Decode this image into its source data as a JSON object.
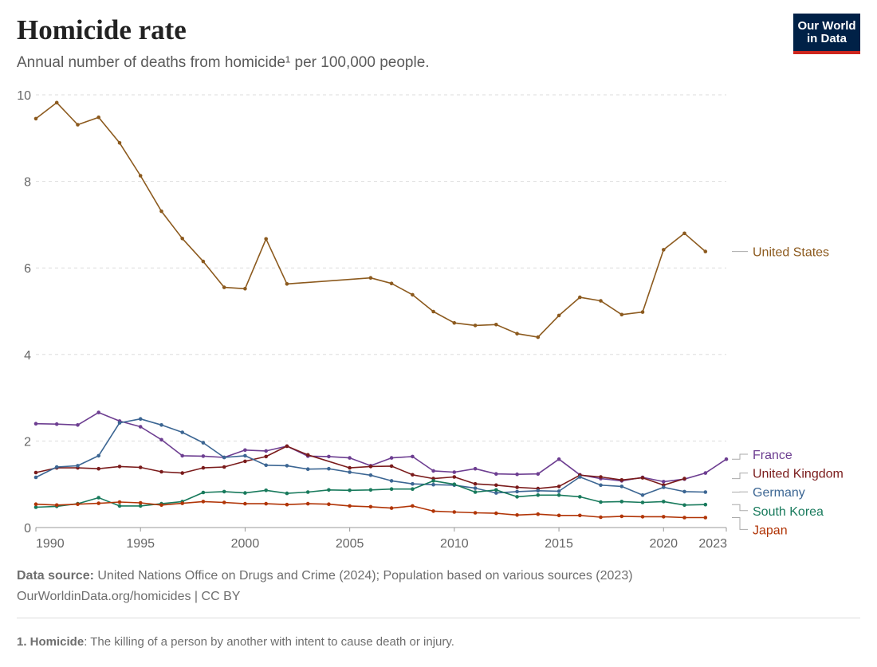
{
  "header": {
    "title": "Homicide rate",
    "subtitle": "Annual number of deaths from homicide¹ per 100,000 people.",
    "logo_line1": "Our World",
    "logo_line2": "in Data"
  },
  "footer": {
    "source_label": "Data source:",
    "source_text": " United Nations Office on Drugs and Crime (2024); Population based on various sources (2023)",
    "url_text": "OurWorldinData.org/homicides | CC BY",
    "note_label": "1. Homicide",
    "note_text": ": The killing of a person by another with intent to cause death or injury."
  },
  "chart_data": {
    "type": "line",
    "title": "Homicide rate",
    "subtitle": "Annual number of deaths from homicide¹ per 100,000 people.",
    "xlabel": "",
    "ylabel": "",
    "xlim": [
      1990,
      2023
    ],
    "ylim": [
      0,
      10
    ],
    "x_ticks": [
      1990,
      1995,
      2000,
      2005,
      2010,
      2015,
      2020,
      2023
    ],
    "y_ticks": [
      0,
      2,
      4,
      6,
      8,
      10
    ],
    "grid": "horizontal dashed",
    "legend": "right, labels at line ends",
    "series": [
      {
        "name": "United States",
        "color": "#8c5a1e",
        "points": [
          [
            1990,
            9.45
          ],
          [
            1991,
            9.82
          ],
          [
            1992,
            9.31
          ],
          [
            1993,
            9.48
          ],
          [
            1994,
            8.89
          ],
          [
            1995,
            8.13
          ],
          [
            1996,
            7.31
          ],
          [
            1997,
            6.68
          ],
          [
            1998,
            6.15
          ],
          [
            1999,
            5.55
          ],
          [
            2000,
            5.52
          ],
          [
            2001,
            6.67
          ],
          [
            2002,
            5.63
          ],
          [
            2006,
            5.77
          ],
          [
            2007,
            5.64
          ],
          [
            2008,
            5.38
          ],
          [
            2009,
            4.99
          ],
          [
            2010,
            4.73
          ],
          [
            2011,
            4.67
          ],
          [
            2012,
            4.69
          ],
          [
            2013,
            4.48
          ],
          [
            2014,
            4.4
          ],
          [
            2015,
            4.9
          ],
          [
            2016,
            5.32
          ],
          [
            2017,
            5.24
          ],
          [
            2018,
            4.92
          ],
          [
            2019,
            4.98
          ],
          [
            2020,
            6.42
          ],
          [
            2021,
            6.8
          ],
          [
            2022,
            6.38
          ]
        ]
      },
      {
        "name": "France",
        "color": "#6d3e91",
        "points": [
          [
            1990,
            2.4
          ],
          [
            1991,
            2.39
          ],
          [
            1992,
            2.37
          ],
          [
            1993,
            2.66
          ],
          [
            1994,
            2.46
          ],
          [
            1995,
            2.33
          ],
          [
            1996,
            2.03
          ],
          [
            1997,
            1.66
          ],
          [
            1998,
            1.65
          ],
          [
            1999,
            1.62
          ],
          [
            2000,
            1.79
          ],
          [
            2001,
            1.77
          ],
          [
            2002,
            1.88
          ],
          [
            2003,
            1.65
          ],
          [
            2004,
            1.64
          ],
          [
            2005,
            1.61
          ],
          [
            2006,
            1.43
          ],
          [
            2007,
            1.61
          ],
          [
            2008,
            1.64
          ],
          [
            2009,
            1.31
          ],
          [
            2010,
            1.28
          ],
          [
            2011,
            1.36
          ],
          [
            2012,
            1.24
          ],
          [
            2013,
            1.23
          ],
          [
            2014,
            1.24
          ],
          [
            2015,
            1.58
          ],
          [
            2016,
            1.22
          ],
          [
            2017,
            1.13
          ],
          [
            2018,
            1.08
          ],
          [
            2019,
            1.16
          ],
          [
            2020,
            1.06
          ],
          [
            2021,
            1.12
          ],
          [
            2022,
            1.26
          ],
          [
            2023,
            1.58
          ]
        ]
      },
      {
        "name": "United Kingdom",
        "color": "#7a1b1b",
        "points": [
          [
            1990,
            1.27
          ],
          [
            1991,
            1.38
          ],
          [
            1992,
            1.38
          ],
          [
            1993,
            1.36
          ],
          [
            1994,
            1.41
          ],
          [
            1995,
            1.39
          ],
          [
            1996,
            1.29
          ],
          [
            1997,
            1.26
          ],
          [
            1998,
            1.38
          ],
          [
            1999,
            1.4
          ],
          [
            2000,
            1.53
          ],
          [
            2001,
            1.64
          ],
          [
            2002,
            1.88
          ],
          [
            2003,
            1.68
          ],
          [
            2005,
            1.38
          ],
          [
            2006,
            1.41
          ],
          [
            2007,
            1.42
          ],
          [
            2008,
            1.22
          ],
          [
            2009,
            1.13
          ],
          [
            2010,
            1.17
          ],
          [
            2011,
            1.01
          ],
          [
            2012,
            0.98
          ],
          [
            2013,
            0.93
          ],
          [
            2014,
            0.9
          ],
          [
            2015,
            0.95
          ],
          [
            2016,
            1.21
          ],
          [
            2017,
            1.17
          ],
          [
            2018,
            1.1
          ],
          [
            2019,
            1.15
          ],
          [
            2020,
            0.98
          ],
          [
            2021,
            1.13
          ]
        ]
      },
      {
        "name": "Germany",
        "color": "#3c6693",
        "points": [
          [
            1990,
            1.16
          ],
          [
            1991,
            1.4
          ],
          [
            1992,
            1.43
          ],
          [
            1993,
            1.66
          ],
          [
            1994,
            2.42
          ],
          [
            1995,
            2.51
          ],
          [
            1996,
            2.37
          ],
          [
            1997,
            2.2
          ],
          [
            1998,
            1.96
          ],
          [
            1999,
            1.62
          ],
          [
            2000,
            1.66
          ],
          [
            2001,
            1.44
          ],
          [
            2002,
            1.43
          ],
          [
            2003,
            1.35
          ],
          [
            2004,
            1.36
          ],
          [
            2005,
            1.28
          ],
          [
            2006,
            1.21
          ],
          [
            2007,
            1.08
          ],
          [
            2008,
            1.01
          ],
          [
            2009,
            0.99
          ],
          [
            2010,
            0.98
          ],
          [
            2011,
            0.91
          ],
          [
            2012,
            0.8
          ],
          [
            2013,
            0.83
          ],
          [
            2014,
            0.85
          ],
          [
            2015,
            0.84
          ],
          [
            2016,
            1.17
          ],
          [
            2017,
            0.98
          ],
          [
            2018,
            0.95
          ],
          [
            2019,
            0.75
          ],
          [
            2020,
            0.93
          ],
          [
            2021,
            0.83
          ],
          [
            2022,
            0.82
          ]
        ]
      },
      {
        "name": "South Korea",
        "color": "#187a5c",
        "points": [
          [
            1990,
            0.47
          ],
          [
            1991,
            0.49
          ],
          [
            1992,
            0.55
          ],
          [
            1993,
            0.69
          ],
          [
            1994,
            0.5
          ],
          [
            1995,
            0.5
          ],
          [
            1996,
            0.55
          ],
          [
            1997,
            0.6
          ],
          [
            1998,
            0.81
          ],
          [
            1999,
            0.83
          ],
          [
            2000,
            0.8
          ],
          [
            2001,
            0.86
          ],
          [
            2002,
            0.79
          ],
          [
            2003,
            0.82
          ],
          [
            2004,
            0.87
          ],
          [
            2005,
            0.86
          ],
          [
            2006,
            0.87
          ],
          [
            2007,
            0.89
          ],
          [
            2008,
            0.89
          ],
          [
            2009,
            1.08
          ],
          [
            2010,
            1.0
          ],
          [
            2011,
            0.82
          ],
          [
            2012,
            0.87
          ],
          [
            2013,
            0.71
          ],
          [
            2014,
            0.75
          ],
          [
            2015,
            0.75
          ],
          [
            2016,
            0.71
          ],
          [
            2017,
            0.59
          ],
          [
            2018,
            0.6
          ],
          [
            2019,
            0.58
          ],
          [
            2020,
            0.6
          ],
          [
            2021,
            0.52
          ],
          [
            2022,
            0.53
          ]
        ]
      },
      {
        "name": "Japan",
        "color": "#b13507",
        "points": [
          [
            1990,
            0.54
          ],
          [
            1991,
            0.52
          ],
          [
            1992,
            0.54
          ],
          [
            1993,
            0.56
          ],
          [
            1994,
            0.59
          ],
          [
            1995,
            0.57
          ],
          [
            1996,
            0.52
          ],
          [
            1997,
            0.56
          ],
          [
            1998,
            0.6
          ],
          [
            1999,
            0.58
          ],
          [
            2000,
            0.55
          ],
          [
            2001,
            0.55
          ],
          [
            2002,
            0.53
          ],
          [
            2003,
            0.55
          ],
          [
            2004,
            0.54
          ],
          [
            2005,
            0.5
          ],
          [
            2006,
            0.48
          ],
          [
            2007,
            0.45
          ],
          [
            2008,
            0.5
          ],
          [
            2009,
            0.38
          ],
          [
            2010,
            0.36
          ],
          [
            2011,
            0.34
          ],
          [
            2012,
            0.33
          ],
          [
            2013,
            0.29
          ],
          [
            2014,
            0.31
          ],
          [
            2015,
            0.28
          ],
          [
            2016,
            0.28
          ],
          [
            2017,
            0.24
          ],
          [
            2018,
            0.26
          ],
          [
            2019,
            0.25
          ],
          [
            2020,
            0.25
          ],
          [
            2021,
            0.23
          ],
          [
            2022,
            0.23
          ]
        ]
      }
    ],
    "legend_order": [
      "France",
      "United Kingdom",
      "Germany",
      "South Korea",
      "Japan"
    ]
  }
}
